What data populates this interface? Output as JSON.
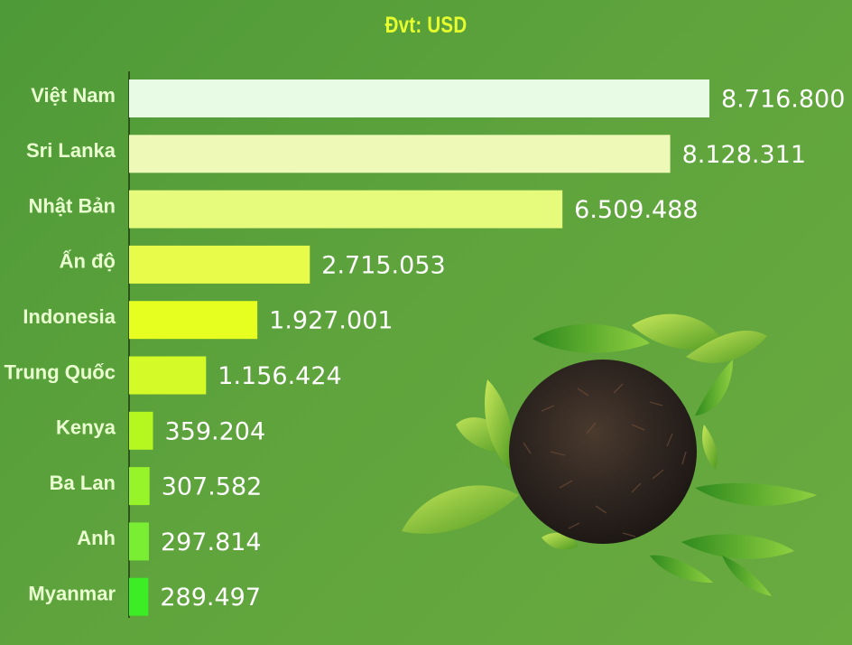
{
  "unit_label": "Đvt: USD",
  "colors": {
    "background": "#5a9f3a",
    "title": "#e6ff2e",
    "category_text": "#e9ffd0",
    "value_text": "#ffffff",
    "bars": [
      "#e8fbe4",
      "#eef9b8",
      "#e6fb7c",
      "#e8fb4a",
      "#e6ff20",
      "#d4fa28",
      "#b4f820",
      "#98f42a",
      "#7aee32",
      "#3cec24"
    ]
  },
  "chart_data": {
    "type": "bar",
    "orientation": "horizontal",
    "title": "Đvt: USD",
    "categories": [
      "Việt Nam",
      "Sri Lanka",
      "Nhật Bản",
      "Ấn độ",
      "Indonesia",
      "Trung Quốc",
      "Kenya",
      "Ba Lan",
      "Anh",
      "Myanmar"
    ],
    "values": [
      8716800,
      8128311,
      6509488,
      2715053,
      1927001,
      1156424,
      359204,
      307582,
      297814,
      289497
    ],
    "value_labels": [
      "8.716.800",
      "8.128.311",
      "6.509.488",
      "2.715.053",
      "1.927.001",
      "1.156.424",
      "359.204",
      "307.582",
      "297.814",
      "289.497"
    ],
    "xlabel": "",
    "ylabel": "",
    "grid": false,
    "legend": "none"
  }
}
